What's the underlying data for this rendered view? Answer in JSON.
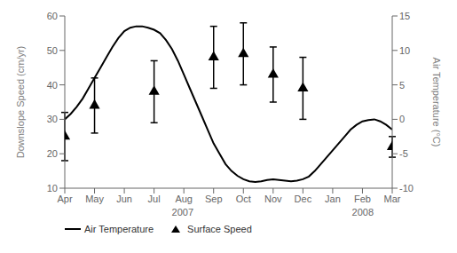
{
  "chart_data": {
    "type": "line",
    "ylabel": "Downslope Speed (cm/yr)",
    "y2label": "Air Temperature (°C)",
    "xlim": [
      0,
      11
    ],
    "xticks": [
      {
        "value": 0,
        "label": "Apr"
      },
      {
        "value": 1,
        "label": "May"
      },
      {
        "value": 2,
        "label": "Jun"
      },
      {
        "value": 3,
        "label": "Jul"
      },
      {
        "value": 4,
        "label": "Aug"
      },
      {
        "value": 5,
        "label": "Sep"
      },
      {
        "value": 6,
        "label": "Oct"
      },
      {
        "value": 7,
        "label": "Nov"
      },
      {
        "value": 8,
        "label": "Dec"
      },
      {
        "value": 9,
        "label": "Jan"
      },
      {
        "value": 10,
        "label": "Feb"
      },
      {
        "value": 11,
        "label": "Mar"
      }
    ],
    "ylim": [
      10,
      60
    ],
    "yticks": [
      10,
      20,
      30,
      40,
      50,
      60
    ],
    "y2lim": [
      -10,
      15
    ],
    "y2ticks": [
      -10,
      -5,
      0,
      5,
      10,
      15
    ],
    "grid": false,
    "legend": "lower left",
    "annotations": [
      "2007",
      "2008"
    ],
    "series": [
      {
        "name": "Air Temperature",
        "type": "line",
        "axis": "y2",
        "color": "#000000",
        "line_style": "solid",
        "x": [
          0.0,
          0.2,
          0.4,
          0.6,
          0.8,
          1.0,
          1.2,
          1.4,
          1.6,
          1.8,
          2.0,
          2.2,
          2.4,
          2.6,
          2.8,
          3.0,
          3.2,
          3.4,
          3.6,
          3.8,
          4.0,
          4.2,
          4.4,
          4.6,
          4.8,
          5.0,
          5.2,
          5.4,
          5.6,
          5.8,
          6.0,
          6.2,
          6.4,
          6.6,
          6.8,
          7.0,
          7.2,
          7.4,
          7.6,
          7.8,
          8.0,
          8.2,
          8.4,
          8.6,
          8.8,
          9.0,
          9.2,
          9.4,
          9.6,
          9.8,
          10.0,
          10.2,
          10.4,
          10.6,
          10.8,
          11.0
        ],
        "values": [
          0.0,
          0.8,
          1.8,
          3.0,
          4.5,
          6.0,
          7.5,
          9.0,
          10.5,
          11.8,
          12.8,
          13.3,
          13.5,
          13.5,
          13.3,
          13.0,
          12.5,
          11.5,
          10.2,
          8.5,
          6.5,
          4.5,
          2.5,
          0.5,
          -1.5,
          -3.5,
          -5.0,
          -6.5,
          -7.5,
          -8.2,
          -8.7,
          -9.0,
          -9.1,
          -9.0,
          -8.8,
          -8.7,
          -8.8,
          -8.9,
          -9.0,
          -8.9,
          -8.7,
          -8.3,
          -7.5,
          -6.5,
          -5.5,
          -4.5,
          -3.5,
          -2.5,
          -1.5,
          -0.8,
          -0.3,
          -0.1,
          0.0,
          -0.3,
          -0.8,
          -1.5
        ]
      },
      {
        "name": "Surface Speed",
        "type": "scatter",
        "axis": "y",
        "color": "#000000",
        "marker": "triangle",
        "x": [
          0,
          1,
          3,
          5,
          6,
          7,
          8,
          11
        ],
        "values": [
          25,
          34,
          38,
          48,
          49,
          43,
          39,
          22
        ],
        "errors": [
          7,
          8,
          9,
          9,
          9,
          8,
          9,
          3
        ]
      }
    ]
  }
}
